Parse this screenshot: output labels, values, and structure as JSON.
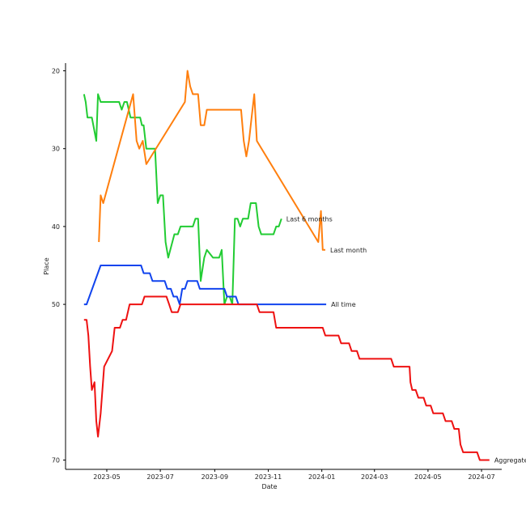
{
  "chart_data": {
    "type": "line",
    "title": "",
    "xlabel": "Date",
    "ylabel": "Place",
    "ylim_inverted": [
      20,
      72
    ],
    "xlim": [
      "2023-03-15",
      "2024-07-24"
    ],
    "x_ticks": [
      "2023-05",
      "2023-07",
      "2023-09",
      "2023-11",
      "2024-01",
      "2024-03",
      "2024-05",
      "2024-07"
    ],
    "y_ticks": [
      20,
      30,
      40,
      50,
      70
    ],
    "grid": false,
    "legend": "none",
    "series": [
      {
        "name": "Last 6 months",
        "color": "#22cc33",
        "points": [
          [
            "2023-04-05",
            23
          ],
          [
            "2023-04-07",
            24
          ],
          [
            "2023-04-09",
            26
          ],
          [
            "2023-04-14",
            26
          ],
          [
            "2023-04-19",
            29
          ],
          [
            "2023-04-21",
            23
          ],
          [
            "2023-04-24",
            24
          ],
          [
            "2023-05-15",
            24
          ],
          [
            "2023-05-18",
            25
          ],
          [
            "2023-05-21",
            24
          ],
          [
            "2023-05-24",
            24
          ],
          [
            "2023-05-28",
            26
          ],
          [
            "2023-06-08",
            26
          ],
          [
            "2023-06-10",
            27
          ],
          [
            "2023-06-12",
            27
          ],
          [
            "2023-06-15",
            30
          ],
          [
            "2023-06-25",
            30
          ],
          [
            "2023-06-28",
            37
          ],
          [
            "2023-07-01",
            36
          ],
          [
            "2023-07-04",
            36
          ],
          [
            "2023-07-07",
            42
          ],
          [
            "2023-07-10",
            44
          ],
          [
            "2023-07-17",
            41
          ],
          [
            "2023-07-21",
            41
          ],
          [
            "2023-07-24",
            40
          ],
          [
            "2023-08-07",
            40
          ],
          [
            "2023-08-10",
            39
          ],
          [
            "2023-08-13",
            39
          ],
          [
            "2023-08-16",
            47
          ],
          [
            "2023-08-20",
            44
          ],
          [
            "2023-08-23",
            43
          ],
          [
            "2023-08-30",
            44
          ],
          [
            "2023-09-06",
            44
          ],
          [
            "2023-09-09",
            43
          ],
          [
            "2023-09-12",
            50
          ],
          [
            "2023-09-15",
            49
          ],
          [
            "2023-09-18",
            49
          ],
          [
            "2023-09-21",
            50
          ],
          [
            "2023-09-24",
            39
          ],
          [
            "2023-09-27",
            39
          ],
          [
            "2023-09-30",
            40
          ],
          [
            "2023-10-03",
            39
          ],
          [
            "2023-10-09",
            39
          ],
          [
            "2023-10-12",
            37
          ],
          [
            "2023-10-18",
            37
          ],
          [
            "2023-10-21",
            40
          ],
          [
            "2023-10-24",
            41
          ],
          [
            "2023-11-07",
            41
          ],
          [
            "2023-11-10",
            40
          ],
          [
            "2023-11-13",
            40
          ],
          [
            "2023-11-16",
            39
          ]
        ]
      },
      {
        "name": "Last month",
        "color": "#ff7f0e",
        "points": [
          [
            "2023-04-22",
            42
          ],
          [
            "2023-04-24",
            36
          ],
          [
            "2023-04-27",
            37
          ],
          [
            "2023-05-31",
            23
          ],
          [
            "2023-06-04",
            29
          ],
          [
            "2023-06-07",
            30
          ],
          [
            "2023-06-11",
            29
          ],
          [
            "2023-06-15",
            32
          ],
          [
            "2023-07-29",
            24
          ],
          [
            "2023-08-01",
            20
          ],
          [
            "2023-08-04",
            22
          ],
          [
            "2023-08-07",
            23
          ],
          [
            "2023-08-13",
            23
          ],
          [
            "2023-08-16",
            27
          ],
          [
            "2023-08-20",
            27
          ],
          [
            "2023-08-23",
            25
          ],
          [
            "2023-10-01",
            25
          ],
          [
            "2023-10-04",
            29
          ],
          [
            "2023-10-07",
            31
          ],
          [
            "2023-10-10",
            29
          ],
          [
            "2023-10-13",
            26
          ],
          [
            "2023-10-16",
            23
          ],
          [
            "2023-10-19",
            29
          ],
          [
            "2023-12-28",
            42
          ],
          [
            "2023-12-31",
            38
          ],
          [
            "2024-01-02",
            43
          ],
          [
            "2024-01-05",
            43
          ]
        ]
      },
      {
        "name": "All time",
        "color": "#1144ee",
        "points": [
          [
            "2023-04-05",
            50
          ],
          [
            "2023-04-08",
            50
          ],
          [
            "2023-04-24",
            45
          ],
          [
            "2023-06-09",
            45
          ],
          [
            "2023-06-12",
            46
          ],
          [
            "2023-06-19",
            46
          ],
          [
            "2023-06-22",
            47
          ],
          [
            "2023-07-06",
            47
          ],
          [
            "2023-07-09",
            48
          ],
          [
            "2023-07-13",
            48
          ],
          [
            "2023-07-16",
            49
          ],
          [
            "2023-07-20",
            49
          ],
          [
            "2023-07-23",
            50
          ],
          [
            "2023-07-26",
            48
          ],
          [
            "2023-07-29",
            48
          ],
          [
            "2023-08-01",
            47
          ],
          [
            "2023-08-12",
            47
          ],
          [
            "2023-08-15",
            48
          ],
          [
            "2023-09-12",
            48
          ],
          [
            "2023-09-15",
            49
          ],
          [
            "2023-09-25",
            49
          ],
          [
            "2023-09-28",
            50
          ],
          [
            "2024-01-06",
            50
          ]
        ]
      },
      {
        "name": "Aggregated",
        "color": "#ee1111",
        "points": [
          [
            "2023-04-05",
            52
          ],
          [
            "2023-04-08",
            52
          ],
          [
            "2023-04-10",
            54
          ],
          [
            "2023-04-12",
            58
          ],
          [
            "2023-04-14",
            61
          ],
          [
            "2023-04-17",
            60
          ],
          [
            "2023-04-19",
            65
          ],
          [
            "2023-04-21",
            67
          ],
          [
            "2023-04-24",
            64
          ],
          [
            "2023-04-28",
            58
          ],
          [
            "2023-05-07",
            56
          ],
          [
            "2023-05-10",
            53
          ],
          [
            "2023-05-16",
            53
          ],
          [
            "2023-05-19",
            52
          ],
          [
            "2023-05-23",
            52
          ],
          [
            "2023-05-27",
            50
          ],
          [
            "2023-06-10",
            50
          ],
          [
            "2023-06-13",
            49
          ],
          [
            "2023-07-08",
            49
          ],
          [
            "2023-07-11",
            50
          ],
          [
            "2023-07-14",
            51
          ],
          [
            "2023-07-21",
            51
          ],
          [
            "2023-07-24",
            50
          ],
          [
            "2023-10-19",
            50
          ],
          [
            "2023-10-22",
            51
          ],
          [
            "2023-11-07",
            51
          ],
          [
            "2023-11-10",
            53
          ],
          [
            "2024-01-02",
            53
          ],
          [
            "2024-01-05",
            54
          ],
          [
            "2024-01-20",
            54
          ],
          [
            "2024-01-23",
            55
          ],
          [
            "2024-02-01",
            55
          ],
          [
            "2024-02-04",
            56
          ],
          [
            "2024-02-10",
            56
          ],
          [
            "2024-02-13",
            57
          ],
          [
            "2024-03-20",
            57
          ],
          [
            "2024-03-23",
            58
          ],
          [
            "2024-04-10",
            58
          ],
          [
            "2024-04-11",
            60
          ],
          [
            "2024-04-13",
            61
          ],
          [
            "2024-04-17",
            61
          ],
          [
            "2024-04-20",
            62
          ],
          [
            "2024-04-26",
            62
          ],
          [
            "2024-04-29",
            63
          ],
          [
            "2024-05-04",
            63
          ],
          [
            "2024-05-07",
            64
          ],
          [
            "2024-05-18",
            64
          ],
          [
            "2024-05-21",
            65
          ],
          [
            "2024-05-28",
            65
          ],
          [
            "2024-05-31",
            66
          ],
          [
            "2024-06-05",
            66
          ],
          [
            "2024-06-07",
            68
          ],
          [
            "2024-06-10",
            69
          ],
          [
            "2024-06-26",
            69
          ],
          [
            "2024-06-29",
            70
          ],
          [
            "2024-07-10",
            70
          ]
        ]
      }
    ]
  }
}
